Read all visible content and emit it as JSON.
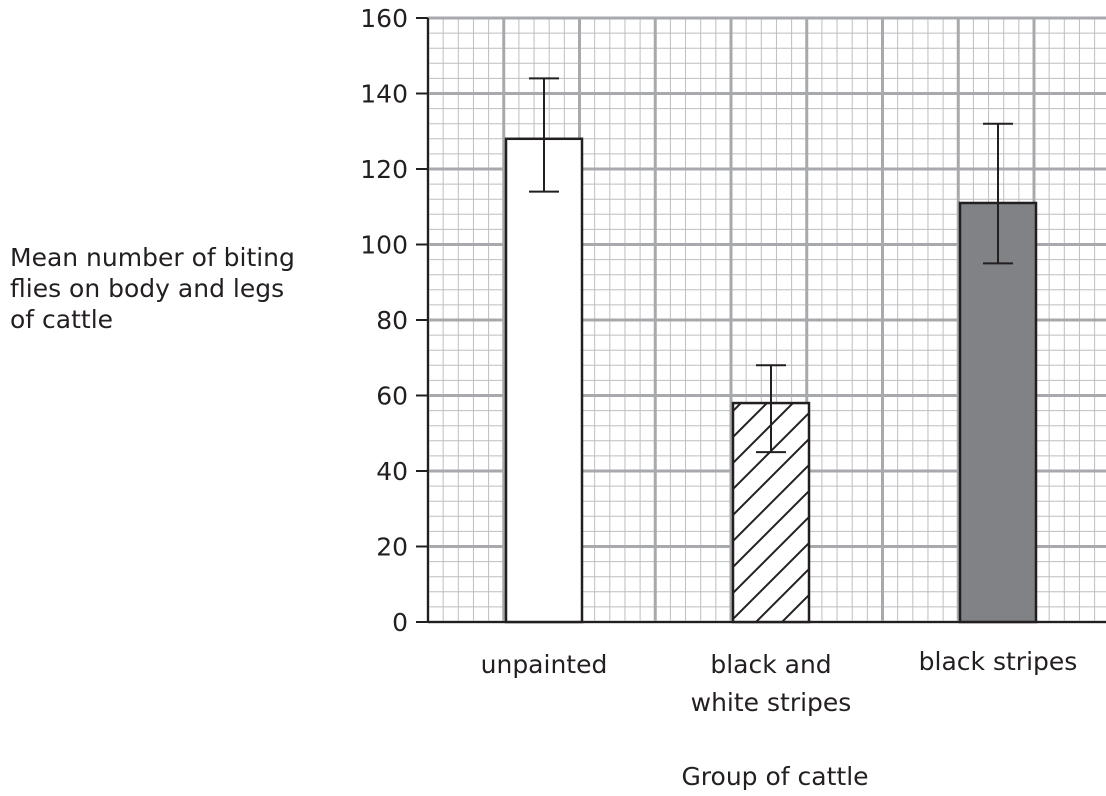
{
  "chart_data": {
    "type": "bar",
    "title": "",
    "xlabel": "Group of cattle",
    "ylabel_lines": [
      "Mean number of biting",
      "flies on body and legs",
      "of cattle"
    ],
    "categories": [
      [
        "unpainted"
      ],
      [
        "black and",
        "white stripes"
      ],
      [
        "black stripes"
      ]
    ],
    "values": [
      128,
      58,
      111
    ],
    "error_bars": [
      {
        "low": 114,
        "high": 144
      },
      {
        "low": 45,
        "high": 68
      },
      {
        "low": 95,
        "high": 132
      }
    ],
    "bar_fills": [
      "white",
      "hatched",
      "grey"
    ],
    "colors": {
      "axis": "#231f20",
      "grid_major": "#a7a9ac",
      "grid_minor": "#bcbec0",
      "grey_bar": "#808285"
    },
    "ylim": [
      0,
      160
    ],
    "yticks": [
      "0",
      "20",
      "40",
      "60",
      "80",
      "100",
      "120",
      "140",
      "160"
    ],
    "grid": true
  }
}
